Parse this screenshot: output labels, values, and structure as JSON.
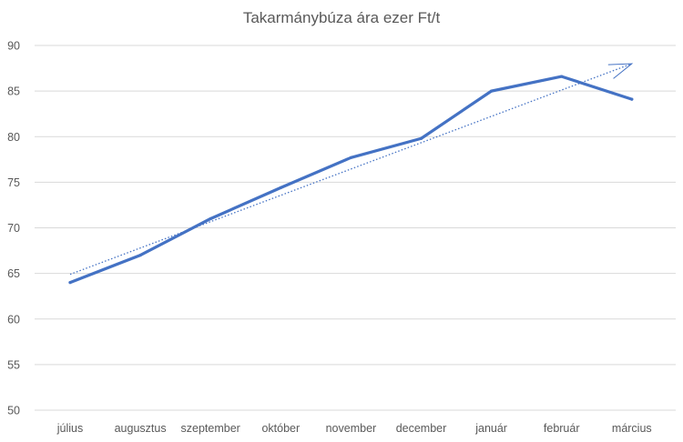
{
  "chart_data": {
    "type": "line",
    "title": "Takarmánybúza ára ezer Ft/t",
    "xlabel": "",
    "ylabel": "",
    "categories": [
      "július",
      "augusztus",
      "szeptember",
      "október",
      "november",
      "december",
      "január",
      "február",
      "március"
    ],
    "series": [
      {
        "values": [
          64.0,
          67.0,
          71.0,
          74.4,
          77.7,
          79.8,
          85.0,
          86.6,
          84.1
        ]
      }
    ],
    "trendline": {
      "type": "linear",
      "style": "dotted",
      "start": 64.9,
      "end": 88.0,
      "arrow_at_end": true
    },
    "ylim": [
      50,
      90
    ],
    "yticks": [
      50,
      55,
      60,
      65,
      70,
      75,
      80,
      85,
      90
    ],
    "grid": true,
    "legend": "none",
    "colors": {
      "series": "#4472C4",
      "trend": "#4472C4",
      "grid": "#d9d9d9",
      "text": "#595959"
    }
  }
}
